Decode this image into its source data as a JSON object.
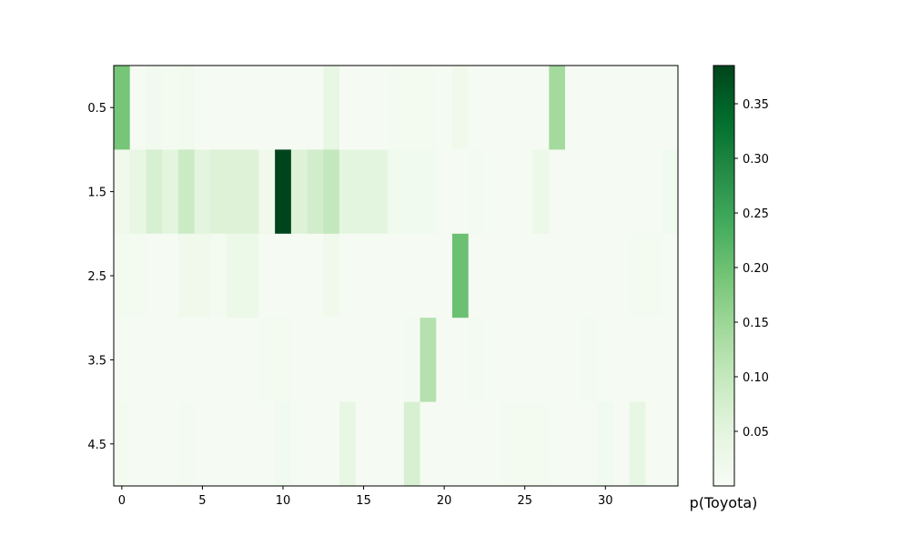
{
  "chart_data": {
    "type": "heatmap",
    "title": "",
    "xlabel": "",
    "ylabel": "",
    "colormap": "Greens",
    "color_low": "#f7fcf5",
    "color_high": "#00441b",
    "x_ticks": [
      "0",
      "5",
      "10",
      "15",
      "20",
      "25",
      "30"
    ],
    "x_tick_values": [
      0,
      5,
      10,
      15,
      20,
      25,
      30
    ],
    "y_ticks": [
      "0.5",
      "1.5",
      "2.5",
      "3.5",
      "4.5"
    ],
    "y_tick_values": [
      0.5,
      1.5,
      2.5,
      3.5,
      4.5
    ],
    "xlim": [
      -0.5,
      34.5
    ],
    "ylim": [
      0,
      5
    ],
    "y_inverted": true,
    "colorbar": {
      "label": "p(Toyota)",
      "min": 0.0,
      "max": 0.385,
      "ticks": [
        "0.05",
        "0.10",
        "0.15",
        "0.20",
        "0.25",
        "0.30",
        "0.35"
      ],
      "tick_values": [
        0.05,
        0.1,
        0.15,
        0.2,
        0.25,
        0.3,
        0.35
      ]
    },
    "matrix": [
      [
        0.19,
        0.005,
        0.015,
        0.01,
        0.015,
        0.005,
        0.005,
        0.005,
        0.005,
        0.005,
        0.005,
        0.005,
        0.005,
        0.04,
        0.005,
        0.005,
        0.005,
        0.01,
        0.01,
        0.01,
        0.005,
        0.02,
        0.005,
        0.005,
        0.005,
        0.005,
        0.005,
        0.14,
        0.005,
        0.005,
        0.005,
        0.005,
        0.005,
        0.005,
        0.005
      ],
      [
        0.02,
        0.04,
        0.07,
        0.05,
        0.09,
        0.05,
        0.06,
        0.06,
        0.06,
        0.02,
        0.385,
        0.06,
        0.08,
        0.1,
        0.05,
        0.05,
        0.05,
        0.015,
        0.015,
        0.015,
        0.005,
        0.005,
        0.01,
        0.005,
        0.005,
        0.005,
        0.03,
        0.005,
        0.005,
        0.005,
        0.005,
        0.005,
        0.005,
        0.005,
        0.015
      ],
      [
        0.01,
        0.01,
        0.005,
        0.005,
        0.02,
        0.02,
        0.01,
        0.03,
        0.03,
        0.005,
        0.005,
        0.005,
        0.005,
        0.02,
        0.005,
        0.005,
        0.005,
        0.005,
        0.005,
        0.005,
        0.005,
        0.2,
        0.005,
        0.005,
        0.005,
        0.005,
        0.005,
        0.005,
        0.005,
        0.005,
        0.005,
        0.005,
        0.01,
        0.01,
        0.005
      ],
      [
        0.005,
        0.005,
        0.005,
        0.005,
        0.005,
        0.005,
        0.005,
        0.005,
        0.005,
        0.01,
        0.01,
        0.005,
        0.005,
        0.005,
        0.005,
        0.005,
        0.005,
        0.005,
        0.01,
        0.12,
        0.005,
        0.005,
        0.01,
        0.005,
        0.005,
        0.005,
        0.005,
        0.005,
        0.005,
        0.01,
        0.005,
        0.005,
        0.005,
        0.005,
        0.005
      ],
      [
        0.01,
        0.005,
        0.005,
        0.005,
        0.01,
        0.005,
        0.005,
        0.005,
        0.005,
        0.005,
        0.015,
        0.005,
        0.005,
        0.005,
        0.04,
        0.005,
        0.005,
        0.005,
        0.07,
        0.005,
        0.005,
        0.005,
        0.005,
        0.005,
        0.01,
        0.01,
        0.01,
        0.005,
        0.005,
        0.005,
        0.015,
        0.005,
        0.04,
        0.005,
        0.005
      ]
    ]
  }
}
